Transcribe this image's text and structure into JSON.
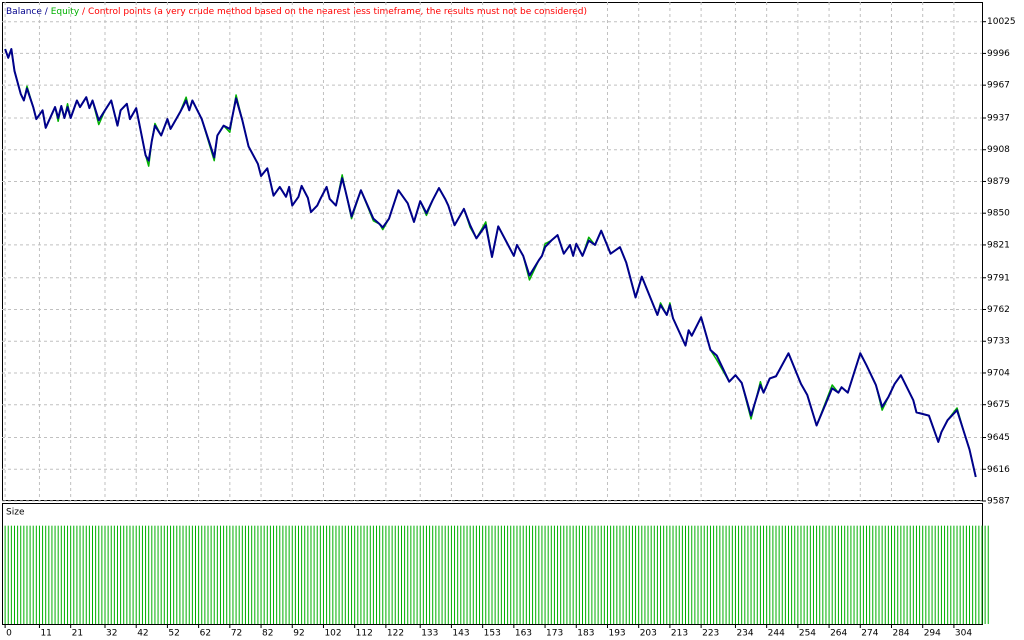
{
  "chart_data": [
    {
      "type": "line",
      "legend_separator": "/",
      "note": "Control points (a very crude method based on the nearest less timeframe, the results must not be considered)",
      "note_color": "#ff0000",
      "grid": true,
      "xlim": [
        -1,
        313
      ],
      "ylim": [
        9587,
        10043
      ],
      "yticks": [
        10025,
        9996,
        9967,
        9937,
        9908,
        9879,
        9850,
        9821,
        9791,
        9762,
        9733,
        9704,
        9675,
        9645,
        9616,
        9587
      ],
      "xticks": [
        0,
        11,
        21,
        32,
        42,
        52,
        62,
        72,
        82,
        92,
        102,
        112,
        122,
        133,
        143,
        153,
        163,
        173,
        183,
        193,
        203,
        213,
        223,
        234,
        244,
        254,
        264,
        274,
        284,
        294,
        304
      ],
      "x": [
        0,
        1,
        2,
        3,
        5,
        6,
        7,
        9,
        10,
        12,
        13,
        16,
        17,
        18,
        19,
        20,
        21,
        23,
        24,
        26,
        27,
        28,
        30,
        32,
        34,
        36,
        37,
        39,
        40,
        42,
        45,
        46,
        47,
        48,
        50,
        52,
        53,
        55,
        56,
        58,
        59,
        60,
        63,
        67,
        68,
        70,
        72,
        74,
        76,
        78,
        81,
        82,
        84,
        86,
        88,
        90,
        91,
        92,
        94,
        95,
        97,
        98,
        100,
        101,
        103,
        104,
        106,
        108,
        109,
        111,
        114,
        118,
        120,
        121,
        123,
        126,
        129,
        131,
        133,
        135,
        137,
        139,
        141,
        142,
        144,
        147,
        149,
        151,
        154,
        156,
        158,
        163,
        164,
        166,
        168,
        171,
        172,
        173,
        175,
        177,
        179,
        181,
        182,
        183,
        185,
        187,
        189,
        191,
        194,
        196,
        197,
        199,
        202,
        204,
        206,
        209,
        210,
        212,
        213,
        214,
        218,
        219,
        220,
        223,
        226,
        228,
        232,
        234,
        236,
        239,
        242,
        243,
        245,
        247,
        251,
        255,
        257,
        260,
        265,
        267,
        268,
        270,
        274,
        276,
        279,
        281,
        283,
        285,
        287,
        291,
        292,
        296,
        299,
        300,
        302,
        305,
        307,
        309,
        311
      ],
      "series": [
        {
          "name": "Equity",
          "color": "#00b000",
          "values": [
            10000,
            9992,
            10000,
            9980,
            9959,
            9953,
            9966,
            9947,
            9936,
            9944,
            9928,
            9947,
            9934,
            9948,
            9937,
            9950,
            9937,
            9953,
            9947,
            9956,
            9946,
            9953,
            9931,
            9944,
            9953,
            9930,
            9944,
            9950,
            9936,
            9946,
            9903,
            9893,
            9916,
            9932,
            9921,
            9936,
            9927,
            9937,
            9942,
            9956,
            9944,
            9953,
            9936,
            9898,
            9921,
            9930,
            9924,
            9958,
            9935,
            9911,
            9895,
            9884,
            9891,
            9866,
            9874,
            9865,
            9874,
            9857,
            9865,
            9875,
            9864,
            9851,
            9857,
            9863,
            9874,
            9863,
            9857,
            9885,
            9871,
            9845,
            9871,
            9843,
            9840,
            9835,
            9845,
            9871,
            9859,
            9842,
            9861,
            9848,
            9862,
            9873,
            9863,
            9857,
            9839,
            9854,
            9837,
            9827,
            9842,
            9810,
            9838,
            9811,
            9821,
            9811,
            9789,
            9807,
            9811,
            9822,
            9825,
            9830,
            9813,
            9821,
            9811,
            9822,
            9811,
            9828,
            9821,
            9834,
            9813,
            9817,
            9819,
            9805,
            9773,
            9792,
            9778,
            9757,
            9768,
            9757,
            9768,
            9754,
            9729,
            9743,
            9738,
            9755,
            9725,
            9716,
            9696,
            9702,
            9695,
            9662,
            9696,
            9686,
            9699,
            9701,
            9722,
            9694,
            9684,
            9656,
            9693,
            9686,
            9691,
            9686,
            9722,
            9711,
            9693,
            9670,
            9682,
            9694,
            9702,
            9679,
            9668,
            9665,
            9641,
            9650,
            9661,
            9672,
            9652,
            9634,
            9609
          ]
        },
        {
          "name": "Balance",
          "color": "#00008b",
          "values": [
            10000,
            9992,
            10000,
            9980,
            9959,
            9953,
            9964,
            9947,
            9936,
            9944,
            9928,
            9947,
            9937,
            9948,
            9937,
            9947,
            9937,
            9953,
            9947,
            9956,
            9946,
            9953,
            9935,
            9944,
            9953,
            9930,
            9944,
            9950,
            9936,
            9946,
            9903,
            9898,
            9916,
            9930,
            9921,
            9936,
            9927,
            9937,
            9942,
            9953,
            9944,
            9953,
            9936,
            9901,
            9921,
            9930,
            9927,
            9955,
            9935,
            9911,
            9895,
            9884,
            9891,
            9866,
            9874,
            9865,
            9874,
            9857,
            9865,
            9875,
            9864,
            9851,
            9857,
            9863,
            9874,
            9863,
            9857,
            9882,
            9871,
            9847,
            9871,
            9845,
            9840,
            9837,
            9845,
            9871,
            9859,
            9842,
            9861,
            9850,
            9862,
            9873,
            9863,
            9857,
            9839,
            9854,
            9839,
            9827,
            9839,
            9810,
            9838,
            9811,
            9821,
            9811,
            9793,
            9807,
            9811,
            9819,
            9825,
            9830,
            9813,
            9821,
            9811,
            9822,
            9811,
            9825,
            9821,
            9834,
            9813,
            9817,
            9819,
            9805,
            9773,
            9792,
            9778,
            9757,
            9766,
            9757,
            9766,
            9754,
            9729,
            9743,
            9738,
            9755,
            9725,
            9720,
            9696,
            9702,
            9695,
            9665,
            9693,
            9686,
            9699,
            9701,
            9722,
            9694,
            9684,
            9656,
            9690,
            9686,
            9691,
            9686,
            9722,
            9711,
            9693,
            9673,
            9682,
            9694,
            9702,
            9679,
            9668,
            9665,
            9641,
            9650,
            9661,
            9670,
            9652,
            9634,
            9609
          ]
        }
      ]
    },
    {
      "type": "bar",
      "title": "Size",
      "color": "#00b000",
      "ylim": [
        0,
        1.2
      ],
      "values": [
        1,
        1,
        1,
        1,
        1,
        1,
        1,
        1,
        1,
        1,
        1,
        1,
        1,
        1,
        1,
        1,
        1,
        1,
        1,
        1,
        1,
        1,
        1,
        1,
        1,
        1,
        1,
        1,
        1,
        1,
        1,
        1,
        1,
        1,
        1,
        1,
        1,
        1,
        1,
        1,
        1,
        1,
        1,
        1,
        1,
        1,
        1,
        1,
        1,
        1,
        1,
        1,
        1,
        1,
        1,
        1,
        1,
        1,
        1,
        1,
        1,
        1,
        1,
        1,
        1,
        1,
        1,
        1,
        1,
        1,
        1,
        1,
        1,
        1,
        1,
        1,
        1,
        1,
        1,
        1,
        1,
        1,
        1,
        1,
        1,
        1,
        1,
        1,
        1,
        1,
        1,
        1,
        1,
        1,
        1,
        1,
        1,
        1,
        1,
        1,
        1,
        1,
        1,
        1,
        1,
        1,
        1,
        1,
        1,
        1,
        1,
        1,
        1,
        1,
        1,
        1,
        1,
        1,
        1,
        1,
        1,
        1,
        1,
        1,
        1,
        1,
        1,
        1,
        1,
        1,
        1,
        1,
        1,
        1,
        1,
        1,
        1,
        1,
        1,
        1,
        1,
        1,
        1,
        1,
        1,
        1,
        1,
        1,
        1,
        1,
        1,
        1,
        1,
        1,
        1,
        1,
        1,
        1,
        1,
        1,
        1,
        1,
        1,
        1,
        1,
        1,
        1,
        1,
        1,
        1,
        1,
        1,
        1,
        1,
        1,
        1,
        1,
        1,
        1,
        1,
        1,
        1,
        1,
        1,
        1,
        1,
        1,
        1,
        1,
        1,
        1,
        1,
        1,
        1,
        1,
        1,
        1,
        1,
        1,
        1,
        1,
        1,
        1,
        1,
        1,
        1,
        1,
        1,
        1,
        1,
        1,
        1,
        1,
        1,
        1,
        1,
        1,
        1,
        1,
        1,
        1,
        1,
        1,
        1,
        1,
        1,
        1,
        1,
        1,
        1,
        1,
        1,
        1,
        1,
        1,
        1,
        1,
        1,
        1,
        1,
        1,
        1,
        1,
        1,
        1,
        1,
        1,
        1,
        1,
        1,
        1,
        1,
        1,
        1,
        1,
        1,
        1,
        1,
        1,
        1,
        1,
        1,
        1,
        1,
        1,
        1,
        1,
        1,
        1,
        1,
        1,
        1,
        1,
        1,
        1,
        1,
        1,
        1,
        1,
        1,
        1,
        1,
        1,
        1,
        1,
        1,
        1,
        1,
        1,
        1,
        1,
        1,
        1,
        1,
        1,
        1,
        1,
        1,
        1,
        1,
        1,
        1,
        1,
        1,
        1,
        1,
        1,
        1,
        1,
        1,
        1,
        1,
        1,
        1,
        1,
        1
      ]
    }
  ]
}
